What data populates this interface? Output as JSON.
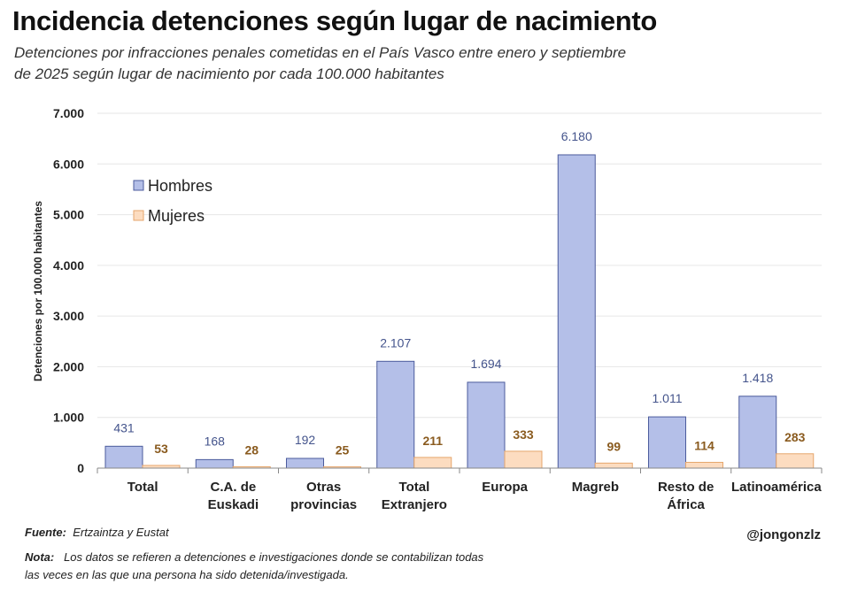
{
  "title": "Incidencia detenciones según lugar de nacimiento",
  "subtitle_line1": "Detenciones por infracciones penales cometidas en el País Vasco entre enero y septiembre",
  "subtitle_line2": "de 2025 según lugar de nacimiento por cada 100.000 habitantes",
  "footer": {
    "source_label": "Fuente:",
    "source": "Ertzaintza y Eustat",
    "note_label": "Nota:",
    "note_line1": "Los datos se refieren a detenciones e investigaciones donde se contabilizan todas",
    "note_line2": "las veces en las que una persona ha sido detenida/investigada.",
    "handle": "@jongonzlz"
  },
  "chart_data": {
    "type": "bar",
    "ylabel": "Detenciones por 100.000 habitantes",
    "ylim": [
      0,
      7000
    ],
    "yticks": [
      0,
      1000,
      2000,
      3000,
      4000,
      5000,
      6000,
      7000
    ],
    "ytick_labels": [
      "0",
      "1.000",
      "2.000",
      "3.000",
      "4.000",
      "5.000",
      "6.000",
      "7.000"
    ],
    "grid": true,
    "legend_placement": "top-left",
    "categories": [
      [
        "Total"
      ],
      [
        "C.A. de",
        "Euskadi"
      ],
      [
        "Otras",
        "provincias"
      ],
      [
        "Total",
        "Extranjero"
      ],
      [
        "Europa"
      ],
      [
        "Magreb"
      ],
      [
        "Resto de",
        "África"
      ],
      [
        "Latinoamérica"
      ]
    ],
    "series": [
      {
        "name": "Hombres",
        "values": [
          431,
          168,
          192,
          2107,
          1694,
          6180,
          1011,
          1418
        ],
        "labels": [
          "431",
          "168",
          "192",
          "2.107",
          "1.694",
          "6.180",
          "1.011",
          "1.418"
        ],
        "color": "#b4bfe8",
        "stroke": "#4b5b9c",
        "label_color": "#44548c"
      },
      {
        "name": "Mujeres",
        "values": [
          53,
          28,
          25,
          211,
          333,
          99,
          114,
          283
        ],
        "labels": [
          "53",
          "28",
          "25",
          "211",
          "333",
          "99",
          "114",
          "283"
        ],
        "color": "#fcdcc0",
        "stroke": "#e6a66c",
        "label_color": "#8a5b1f"
      }
    ]
  }
}
